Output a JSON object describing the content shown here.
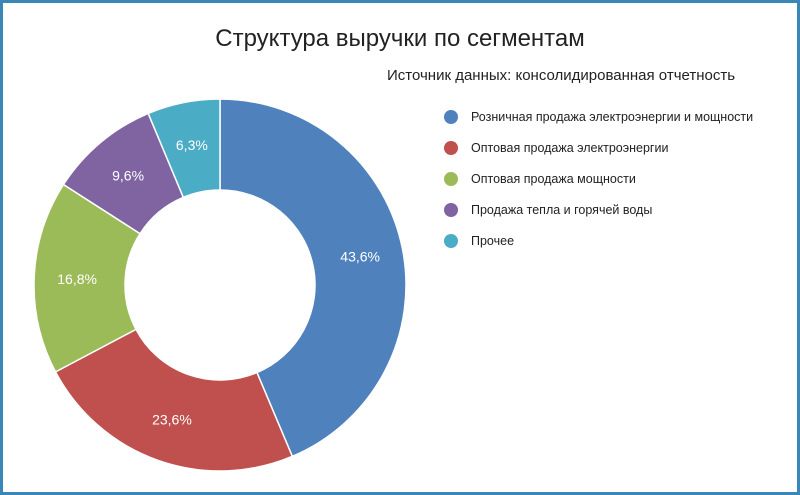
{
  "chart_data": {
    "type": "pie",
    "title": "Структура выручки по сегментам",
    "subtitle": "Источник данных: консолидированная отчетность",
    "hole": true,
    "legend_position": "right",
    "slices": [
      {
        "label": "Розничная продажа электроэнергии и мощности",
        "value": 43.6,
        "display": "43,6%",
        "color": "#4f81bd"
      },
      {
        "label": "Оптовая продажа электроэнергии",
        "value": 23.6,
        "display": "23,6%",
        "color": "#c0504d"
      },
      {
        "label": "Оптовая продажа мощности",
        "value": 16.8,
        "display": "16,8%",
        "color": "#9bbb59"
      },
      {
        "label": "Продажа тепла и горячей воды",
        "value": 9.6,
        "display": "9,6%",
        "color": "#8064a2"
      },
      {
        "label": "Прочее",
        "value": 6.3,
        "display": "6,3%",
        "color": "#4bacc6"
      }
    ]
  }
}
